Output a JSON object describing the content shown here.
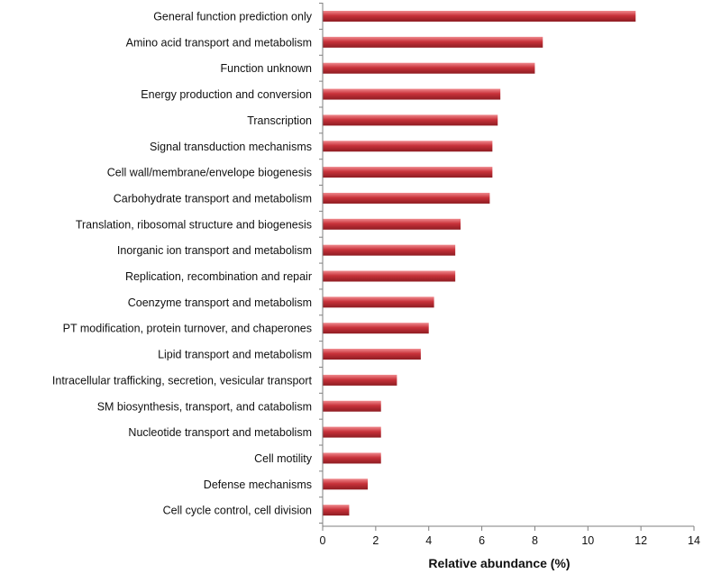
{
  "chart_data": {
    "type": "bar",
    "orientation": "horizontal",
    "title": "",
    "xlabel": "Relative abundance (%)",
    "ylabel": "",
    "xlim": [
      0,
      14
    ],
    "x_ticks": [
      0,
      2,
      4,
      6,
      8,
      10,
      12,
      14
    ],
    "grid": false,
    "legend": "none",
    "colors": {
      "bar_main": "#c8323a",
      "bar_light": "#f08a8e",
      "bar_dark": "#8e1c22",
      "axis": "#7f7f7f",
      "text": "#111111"
    },
    "categories": [
      "General function prediction only",
      "Amino acid transport and metabolism",
      "Function unknown",
      "Energy production and conversion",
      "Transcription",
      "Signal transduction mechanisms",
      "Cell wall/membrane/envelope biogenesis",
      "Carbohydrate transport and metabolism",
      "Translation, ribosomal structure and biogenesis",
      "Inorganic ion transport and metabolism",
      "Replication, recombination and repair",
      "Coenzyme transport and metabolism",
      "PT modification, protein turnover, and chaperones",
      "Lipid transport and metabolism",
      "Intracellular trafficking, secretion, vesicular transport",
      "SM biosynthesis, transport, and catabolism",
      "Nucleotide transport and metabolism",
      "Cell motility",
      "Defense mechanisms",
      "Cell cycle control, cell division"
    ],
    "values": [
      11.8,
      8.3,
      8.0,
      6.7,
      6.6,
      6.4,
      6.4,
      6.3,
      5.2,
      5.0,
      5.0,
      4.2,
      4.0,
      3.7,
      2.8,
      2.2,
      2.2,
      2.2,
      1.7,
      1.0
    ]
  }
}
